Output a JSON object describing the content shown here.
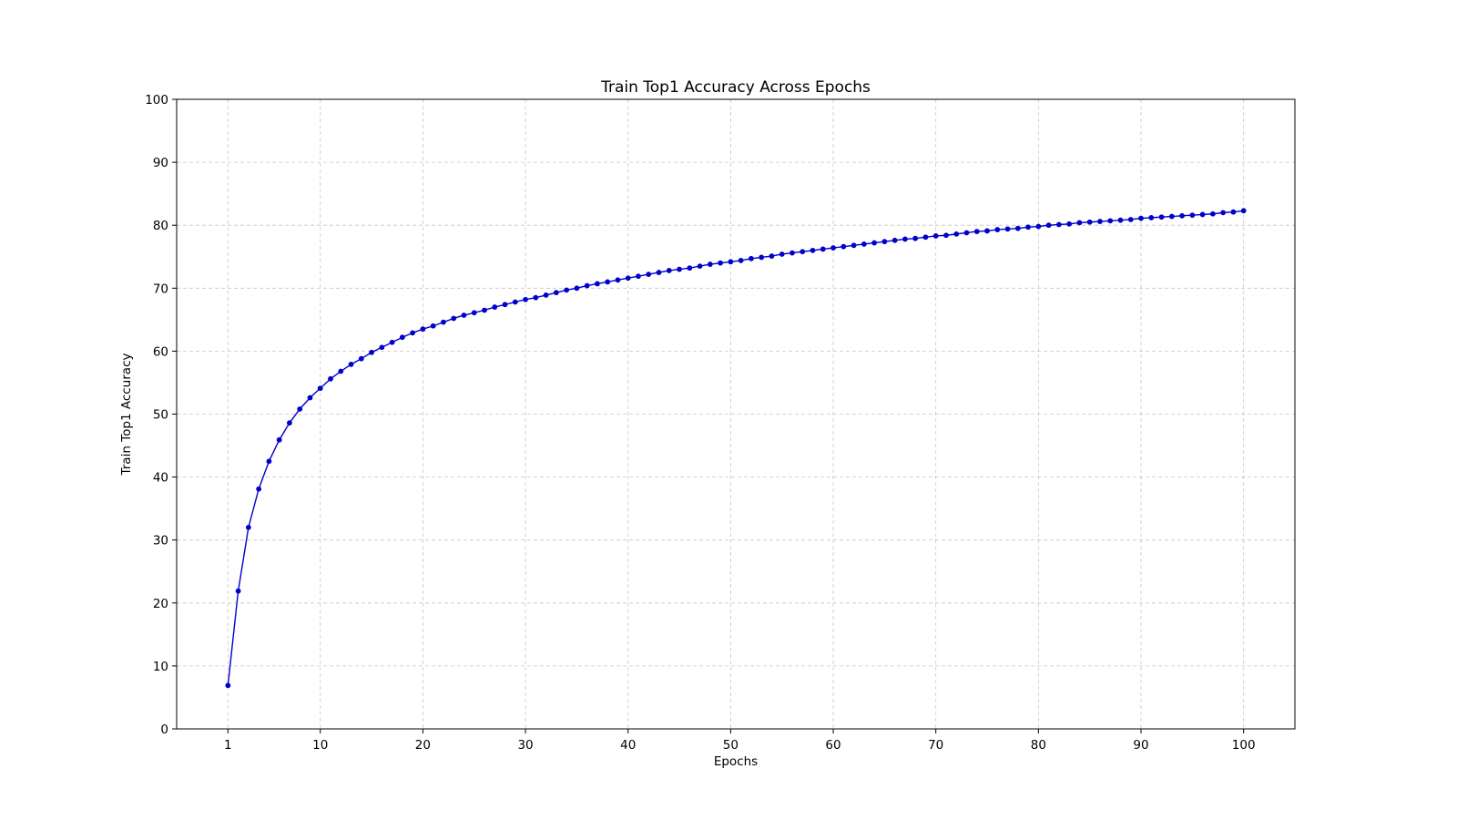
{
  "chart_data": {
    "type": "line",
    "title": "Train Top1 Accuracy Across Epochs",
    "xlabel": "Epochs",
    "ylabel": "Train Top1 Accuracy",
    "xlim": [
      -4,
      105
    ],
    "ylim": [
      0,
      100
    ],
    "xticks": [
      1,
      10,
      20,
      30,
      40,
      50,
      60,
      70,
      80,
      90,
      100
    ],
    "xtick_labels": [
      "1",
      "10",
      "20",
      "30",
      "40",
      "50",
      "60",
      "70",
      "80",
      "90",
      "100"
    ],
    "yticks": [
      0,
      10,
      20,
      30,
      40,
      50,
      60,
      70,
      80,
      90,
      100
    ],
    "ytick_labels": [
      "0",
      "10",
      "20",
      "30",
      "40",
      "50",
      "60",
      "70",
      "80",
      "90",
      "100"
    ],
    "grid": true,
    "line_color": "#0000cc",
    "marker": "circle",
    "series": [
      {
        "x": [
          1,
          2,
          3,
          4,
          5,
          6,
          7,
          8,
          9,
          10,
          11,
          12,
          13,
          14,
          15,
          16,
          17,
          18,
          19,
          20,
          21,
          22,
          23,
          24,
          25,
          26,
          27,
          28,
          29,
          30,
          31,
          32,
          33,
          34,
          35,
          36,
          37,
          38,
          39,
          40,
          41,
          42,
          43,
          44,
          45,
          46,
          47,
          48,
          49,
          50,
          51,
          52,
          53,
          54,
          55,
          56,
          57,
          58,
          59,
          60,
          61,
          62,
          63,
          64,
          65,
          66,
          67,
          68,
          69,
          70,
          71,
          72,
          73,
          74,
          75,
          76,
          77,
          78,
          79,
          80,
          81,
          82,
          83,
          84,
          85,
          86,
          87,
          88,
          89,
          90,
          91,
          92,
          93,
          94,
          95,
          96,
          97,
          98,
          99,
          100
        ],
        "values": [
          6.9,
          21.9,
          32.0,
          38.1,
          42.5,
          45.9,
          48.6,
          50.8,
          52.6,
          54.1,
          55.6,
          56.8,
          57.9,
          58.8,
          59.8,
          60.6,
          61.4,
          62.2,
          62.9,
          63.5,
          64.0,
          64.6,
          65.2,
          65.7,
          66.1,
          66.5,
          67.0,
          67.4,
          67.8,
          68.2,
          68.5,
          68.9,
          69.3,
          69.7,
          70.0,
          70.4,
          70.7,
          71.0,
          71.3,
          71.6,
          71.9,
          72.2,
          72.5,
          72.8,
          73.0,
          73.2,
          73.5,
          73.8,
          74.0,
          74.2,
          74.4,
          74.7,
          74.9,
          75.1,
          75.4,
          75.6,
          75.8,
          76.0,
          76.2,
          76.4,
          76.6,
          76.8,
          77.0,
          77.2,
          77.4,
          77.6,
          77.8,
          77.9,
          78.1,
          78.3,
          78.4,
          78.6,
          78.8,
          79.0,
          79.1,
          79.3,
          79.4,
          79.5,
          79.7,
          79.8,
          80.0,
          80.1,
          80.2,
          80.4,
          80.5,
          80.6,
          80.7,
          80.8,
          80.9,
          81.1,
          81.2,
          81.3,
          81.4,
          81.5,
          81.6,
          81.7,
          81.8,
          82.0,
          82.1,
          82.3
        ]
      }
    ]
  }
}
